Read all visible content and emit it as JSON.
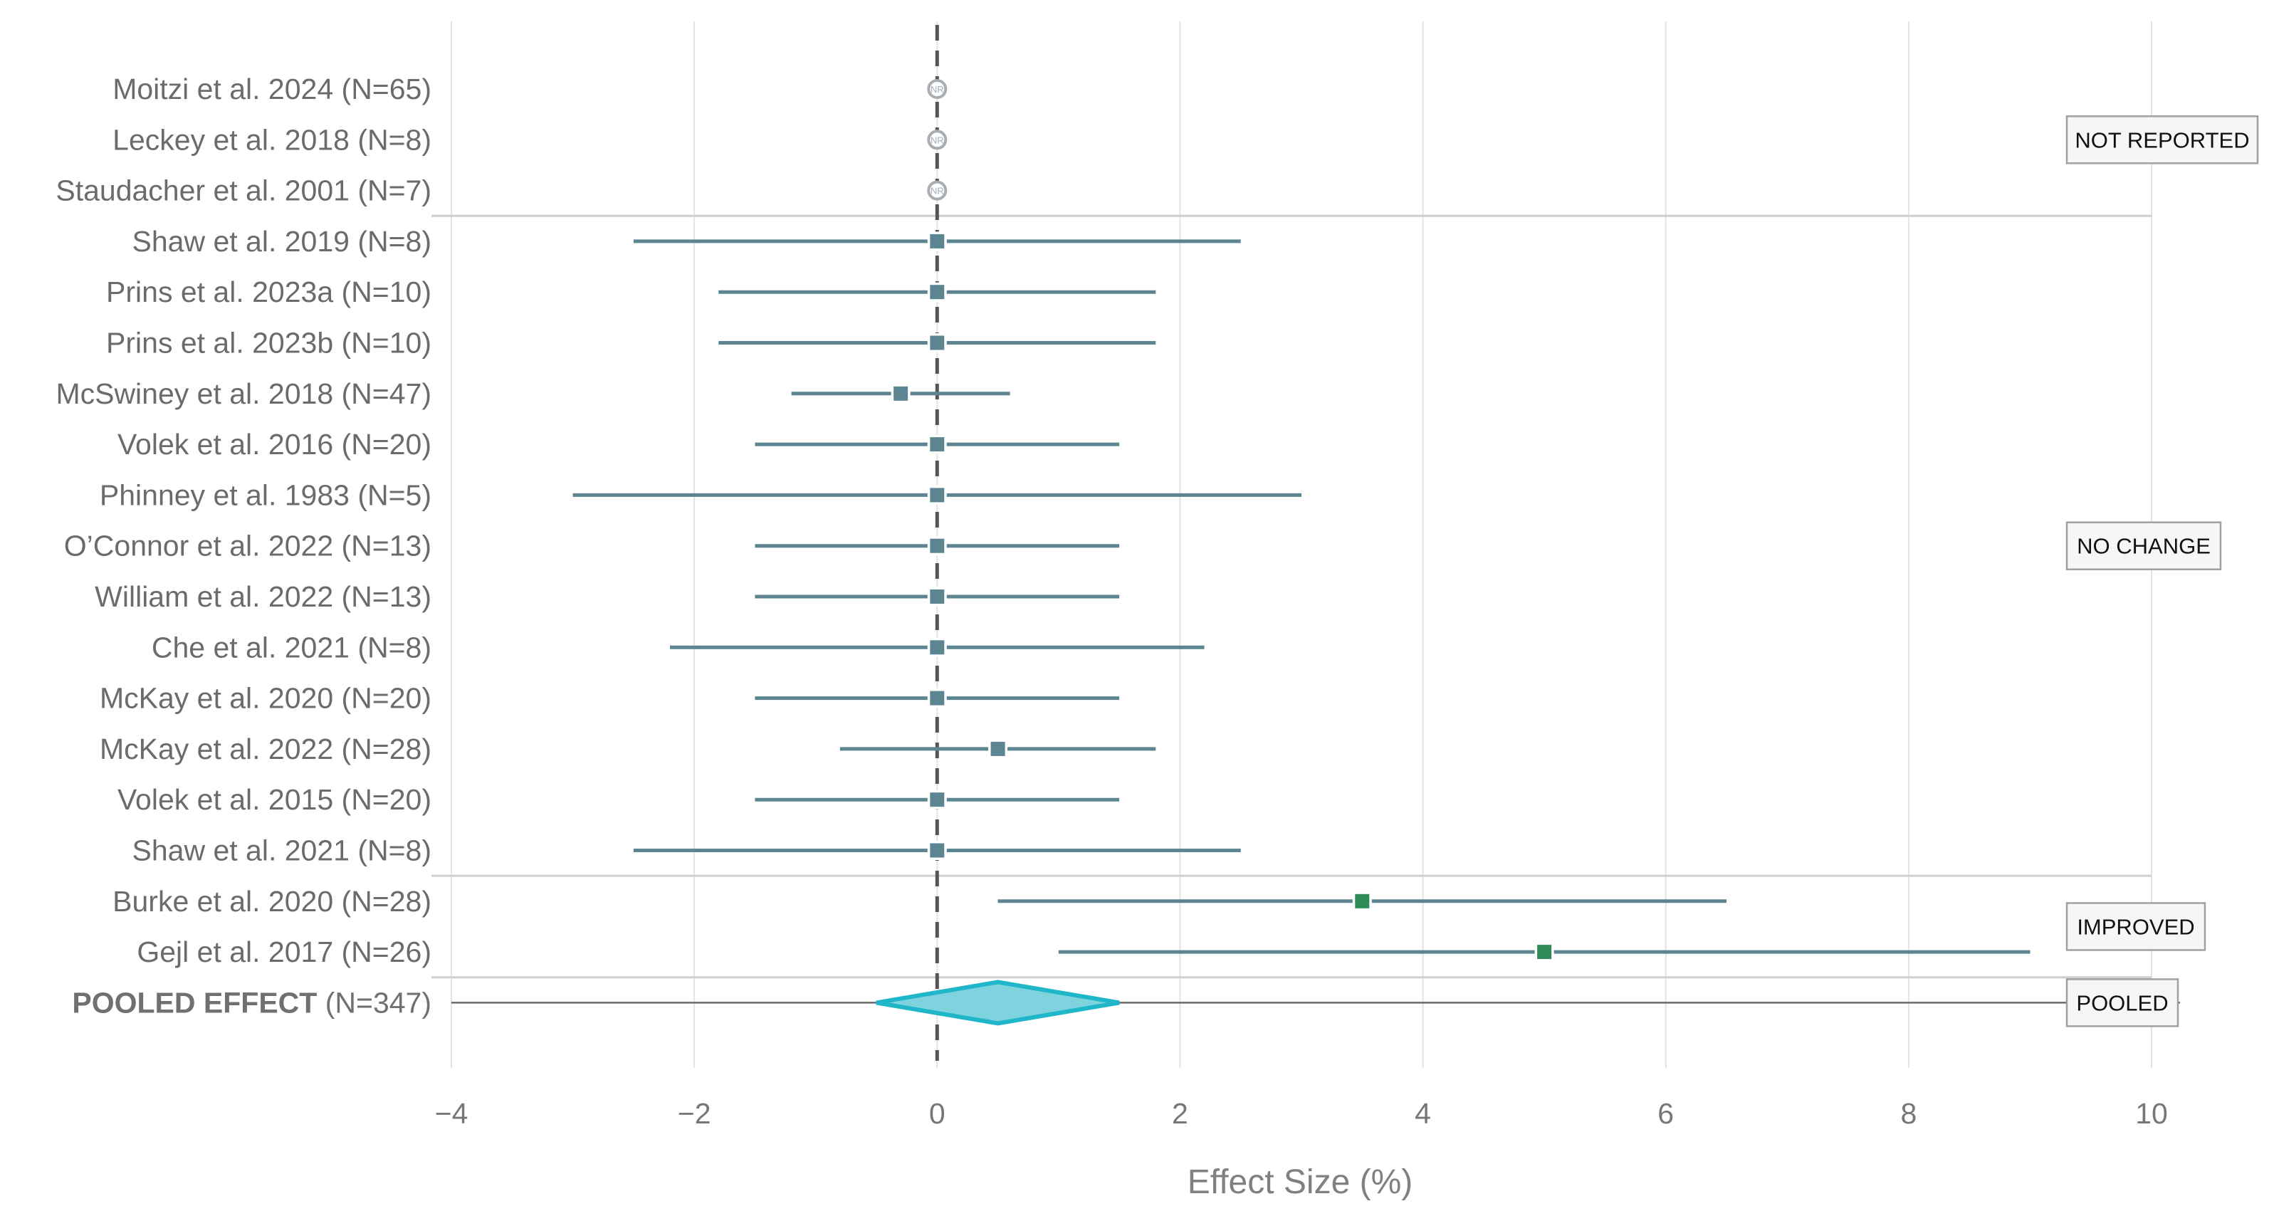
{
  "chart_data": {
    "type": "forest",
    "title": "",
    "xlabel": "Effect Size (%)",
    "ylabel": "",
    "xlim": [
      -4,
      10
    ],
    "xticks": [
      -4,
      -2,
      0,
      2,
      4,
      6,
      8,
      10
    ],
    "xtick_labels": [
      "−4",
      "−2",
      "0",
      "2",
      "4",
      "6",
      "8",
      "10"
    ],
    "grid": "vertical",
    "reference_line": 0,
    "studies": [
      {
        "label": "Moitzi et al. 2024 (N=65)",
        "estimate": 0,
        "ci": null,
        "group": "not_reported",
        "marker": "NR"
      },
      {
        "label": "Leckey et al. 2018 (N=8)",
        "estimate": 0,
        "ci": null,
        "group": "not_reported",
        "marker": "NR"
      },
      {
        "label": "Staudacher et al. 2001 (N=7)",
        "estimate": 0,
        "ci": null,
        "group": "not_reported",
        "marker": "NR"
      },
      {
        "label": "Shaw et al. 2019 (N=8)",
        "estimate": 0,
        "ci": [
          -2.5,
          2.5
        ],
        "group": "no_change"
      },
      {
        "label": "Prins et al. 2023a (N=10)",
        "estimate": 0,
        "ci": [
          -1.8,
          1.8
        ],
        "group": "no_change"
      },
      {
        "label": "Prins et al. 2023b (N=10)",
        "estimate": 0,
        "ci": [
          -1.8,
          1.8
        ],
        "group": "no_change"
      },
      {
        "label": "McSwiney et al. 2018 (N=47)",
        "estimate": -0.3,
        "ci": [
          -1.2,
          0.6
        ],
        "group": "no_change"
      },
      {
        "label": "Volek et al. 2016 (N=20)",
        "estimate": 0,
        "ci": [
          -1.5,
          1.5
        ],
        "group": "no_change"
      },
      {
        "label": "Phinney et al. 1983 (N=5)",
        "estimate": 0,
        "ci": [
          -3.0,
          3.0
        ],
        "group": "no_change"
      },
      {
        "label": "O’Connor et al. 2022 (N=13)",
        "estimate": 0,
        "ci": [
          -1.5,
          1.5
        ],
        "group": "no_change"
      },
      {
        "label": "William et al. 2022 (N=13)",
        "estimate": 0,
        "ci": [
          -1.5,
          1.5
        ],
        "group": "no_change"
      },
      {
        "label": "Che et al. 2021 (N=8)",
        "estimate": 0,
        "ci": [
          -2.2,
          2.2
        ],
        "group": "no_change"
      },
      {
        "label": "McKay et al. 2020 (N=20)",
        "estimate": 0,
        "ci": [
          -1.5,
          1.5
        ],
        "group": "no_change"
      },
      {
        "label": "McKay et al. 2022 (N=28)",
        "estimate": 0.5,
        "ci": [
          -0.8,
          1.8
        ],
        "group": "no_change"
      },
      {
        "label": "Volek et al. 2015 (N=20)",
        "estimate": 0,
        "ci": [
          -1.5,
          1.5
        ],
        "group": "no_change"
      },
      {
        "label": "Shaw et al. 2021 (N=8)",
        "estimate": 0,
        "ci": [
          -2.5,
          2.5
        ],
        "group": "no_change"
      },
      {
        "label": "Burke et al. 2020 (N=28)",
        "estimate": 3.5,
        "ci": [
          0.5,
          6.5
        ],
        "group": "improved"
      },
      {
        "label": "Gejl et al. 2017 (N=26)",
        "estimate": 5.0,
        "ci": [
          1.0,
          9.0
        ],
        "group": "improved"
      }
    ],
    "pooled": {
      "label_bold": "POOLED EFFECT",
      "label_rest": "(N=347)",
      "estimate": 0.5,
      "ci": [
        -0.5,
        1.5
      ]
    },
    "group_tags": [
      {
        "id": "not_reported",
        "label": "NOT REPORTED"
      },
      {
        "id": "no_change",
        "label": "NO CHANGE"
      },
      {
        "id": "improved",
        "label": "IMPROVED"
      },
      {
        "id": "pooled",
        "label": "POOLED"
      }
    ],
    "colors": {
      "ci_line": "#5b8590",
      "marker_no_change": "#5b8590",
      "marker_improved": "#2e8b57",
      "marker_not_reported": "#a7adb2",
      "pooled_fill": "#7fd3df",
      "pooled_stroke": "#1fb6c9",
      "reference_line": "#555555",
      "grid": "#e3e3e3",
      "separator": "#cfcfcf"
    }
  }
}
